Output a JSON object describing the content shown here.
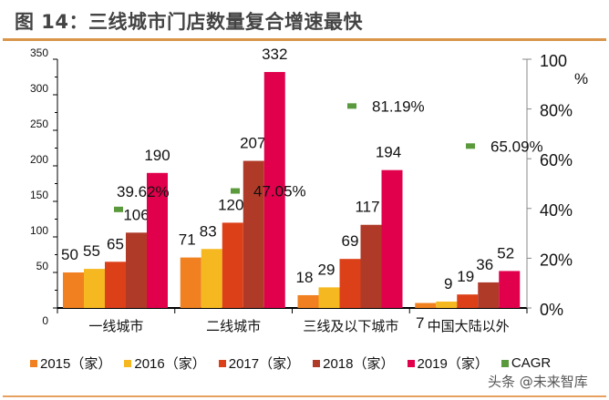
{
  "title": "图 14：三线城市门店数量复合增速最快",
  "watermark": "头条 @未来智库",
  "chart_data": {
    "type": "bar",
    "categories": [
      "一线城市",
      "二线城市",
      "三线及以下城市",
      "中国大陆以外"
    ],
    "series": [
      {
        "name": "2015（家）",
        "color": "#f08020",
        "values": [
          50,
          71,
          18,
          7
        ]
      },
      {
        "name": "2016（家）",
        "color": "#f5b820",
        "values": [
          55,
          83,
          29,
          9
        ]
      },
      {
        "name": "2017（家）",
        "color": "#dc4018",
        "values": [
          65,
          120,
          69,
          19
        ]
      },
      {
        "name": "2018（家）",
        "color": "#b03a28",
        "values": [
          106,
          207,
          117,
          36
        ]
      },
      {
        "name": "2019（家）",
        "color": "#e0004c",
        "values": [
          190,
          332,
          194,
          52
        ]
      }
    ],
    "cagr": {
      "name": "CAGR",
      "color": "#5a9a3c",
      "values": [
        39.62,
        47.05,
        81.19,
        65.09
      ],
      "labels": [
        "39.62%",
        "47.05%",
        "81.19%",
        "65.09%"
      ]
    },
    "y_left": {
      "ylim": [
        0,
        350
      ],
      "ticks": [
        "0",
        "50",
        "100",
        "150",
        "200",
        "250",
        "300",
        "350"
      ]
    },
    "y_right": {
      "ylim": [
        0,
        100
      ],
      "ticks": [
        "0%",
        "20%",
        "40%",
        "60%",
        "80%",
        "100"
      ],
      "unit": "%"
    },
    "legend_position": "bottom",
    "grid": false
  }
}
